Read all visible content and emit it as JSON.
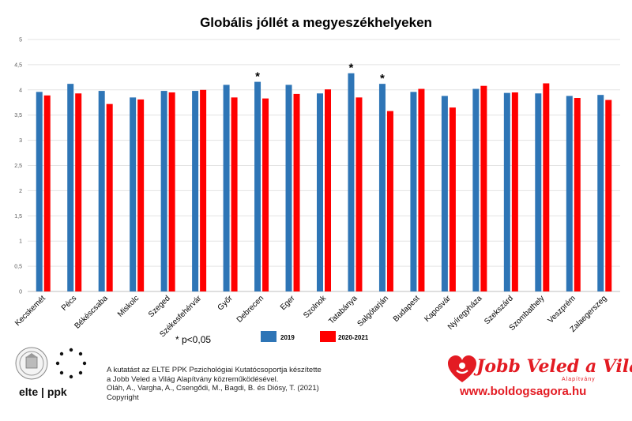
{
  "chart_data": {
    "type": "bar",
    "title": "Globális jóllét a megyeszékhelyeken",
    "categories": [
      "Kecskemét",
      "Pécs",
      "Békéscsaba",
      "Miskolc",
      "Szeged",
      "Székesfehérvár",
      "Győr",
      "Debrecen",
      "Eger",
      "Szolnok",
      "Tatabánya",
      "Salgótarján",
      "Budapest",
      "Kaposvár",
      "Nyíregyháza",
      "Szekszárd",
      "Szombathely",
      "Veszprém",
      "Zalaegerszeg"
    ],
    "series": [
      {
        "name": "2019",
        "color": "#2e75b6",
        "values": [
          3.96,
          4.12,
          3.98,
          3.85,
          3.98,
          3.98,
          4.1,
          4.16,
          4.1,
          3.93,
          4.33,
          4.12,
          3.96,
          3.88,
          4.02,
          3.94,
          3.93,
          3.88,
          3.9
        ]
      },
      {
        "name": "2020-2021",
        "color": "#ff0000",
        "values": [
          3.89,
          3.93,
          3.72,
          3.81,
          3.95,
          4.0,
          3.85,
          3.83,
          3.92,
          4.01,
          3.85,
          3.58,
          4.02,
          3.65,
          4.08,
          3.95,
          4.13,
          3.84,
          3.8
        ]
      }
    ],
    "significant": [
      "Debrecen",
      "Tatabánya",
      "Salgótarján"
    ],
    "ylim": [
      0,
      5
    ],
    "yticks": [
      "0",
      "0,5",
      "1",
      "1,5",
      "2",
      "2,5",
      "3",
      "3,5",
      "4",
      "4,5",
      "5"
    ],
    "grid": true,
    "legend": "bottom"
  },
  "annotations": {
    "star_symbol": "*",
    "significance_note": "* p<0,05"
  },
  "footer": {
    "credit_lines": [
      "A kutatást az ELTE PPK Pszichológiai Kutatócsoportja készítette",
      "a Jobb Veled a Világ Alapítvány közreműködésével.",
      "Oláh, A., Vargha, A., Csengődi, M., Bagdi, B. és Diósy, T.  (2021)",
      "Copyright"
    ],
    "elte_logo_text": "elte | ppk",
    "jobb_logo_text": "Jobb Veled a Világ",
    "jobb_logo_sub": "Alapítvány",
    "website": "www.boldogsagora.hu",
    "brand_red": "#e31b23"
  }
}
